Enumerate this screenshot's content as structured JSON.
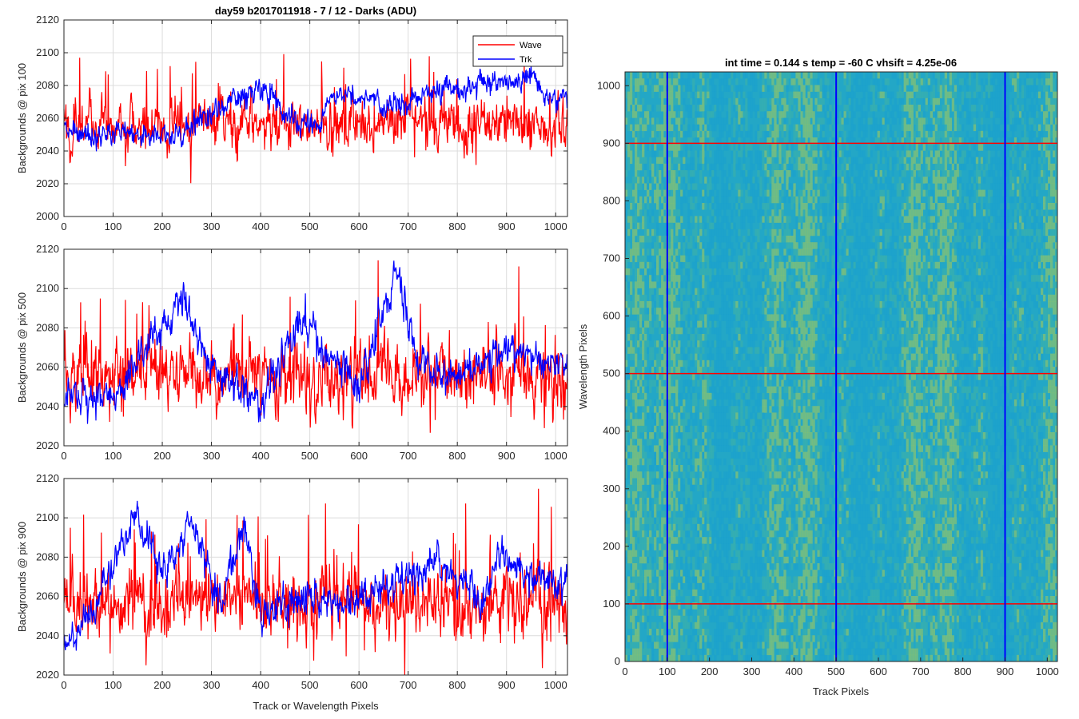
{
  "colors": {
    "wave": "#ff0000",
    "trk": "#0000ff",
    "axis": "#262626",
    "grid": "#dcdcdc"
  },
  "chart_data": [
    {
      "type": "line",
      "title": "day59 b2017011918 - 7 / 12 - Darks (ADU)",
      "xlabel": "",
      "ylabel": "Backgrounds @ pix 100",
      "xlim": [
        0,
        1024
      ],
      "ylim": [
        2000,
        2120
      ],
      "xticks": [
        "0",
        "100",
        "200",
        "300",
        "400",
        "500",
        "600",
        "700",
        "800",
        "900",
        "1000"
      ],
      "yticks": [
        "2000",
        "2020",
        "2040",
        "2060",
        "2080",
        "2100",
        "2120"
      ],
      "grid": true,
      "legend": "top-right",
      "series": [
        {
          "name": "Wave",
          "color": "#ff0000",
          "mean": 2055,
          "noise": 10,
          "spike_rate": 0.04,
          "spike_amp": 40,
          "features": []
        },
        {
          "name": "Trk",
          "color": "#0000ff",
          "mean": 2058,
          "noise": 5,
          "spike_rate": 0.0,
          "spike_amp": 0,
          "features": [
            [
              150,
              2050
            ],
            [
              250,
              2052
            ],
            [
              380,
              2078
            ],
            [
              420,
              2075
            ],
            [
              450,
              2062
            ],
            [
              520,
              2055
            ],
            [
              540,
              2075
            ],
            [
              680,
              2068
            ],
            [
              720,
              2075
            ],
            [
              950,
              2085
            ],
            [
              1000,
              2072
            ]
          ]
        }
      ]
    },
    {
      "type": "line",
      "title": "",
      "xlabel": "",
      "ylabel": "Backgrounds @ pix 500",
      "xlim": [
        0,
        1024
      ],
      "ylim": [
        2020,
        2120
      ],
      "xticks": [
        "0",
        "100",
        "200",
        "300",
        "400",
        "500",
        "600",
        "700",
        "800",
        "900",
        "1000"
      ],
      "yticks": [
        "2020",
        "2040",
        "2060",
        "2080",
        "2100",
        "2120"
      ],
      "grid": true,
      "series": [
        {
          "name": "Wave",
          "color": "#ff0000",
          "mean": 2055,
          "noise": 11,
          "spike_rate": 0.04,
          "spike_amp": 45,
          "features": []
        },
        {
          "name": "Trk",
          "color": "#0000ff",
          "mean": 2052,
          "noise": 6,
          "spike_rate": 0.0,
          "spike_amp": 0,
          "features": [
            [
              30,
              2045
            ],
            [
              100,
              2045
            ],
            [
              170,
              2070
            ],
            [
              245,
              2098
            ],
            [
              290,
              2060
            ],
            [
              350,
              2050
            ],
            [
              400,
              2040
            ],
            [
              480,
              2085
            ],
            [
              540,
              2065
            ],
            [
              600,
              2050
            ],
            [
              680,
              2110
            ],
            [
              720,
              2060
            ],
            [
              800,
              2055
            ],
            [
              900,
              2070
            ],
            [
              1024,
              2058
            ]
          ]
        }
      ]
    },
    {
      "type": "line",
      "title": "",
      "xlabel": "Track or Wavelength Pixels",
      "ylabel": "Backgrounds @ pix 900",
      "xlim": [
        0,
        1024
      ],
      "ylim": [
        2020,
        2120
      ],
      "xticks": [
        "0",
        "100",
        "200",
        "300",
        "400",
        "500",
        "600",
        "700",
        "800",
        "900",
        "1000"
      ],
      "yticks": [
        "2020",
        "2040",
        "2060",
        "2080",
        "2100",
        "2120"
      ],
      "grid": true,
      "series": [
        {
          "name": "Wave",
          "color": "#ff0000",
          "mean": 2057,
          "noise": 11,
          "spike_rate": 0.04,
          "spike_amp": 45,
          "features": []
        },
        {
          "name": "Trk",
          "color": "#0000ff",
          "mean": 2060,
          "noise": 6,
          "spike_rate": 0.0,
          "spike_amp": 0,
          "features": [
            [
              10,
              2035
            ],
            [
              60,
              2055
            ],
            [
              145,
              2100
            ],
            [
              200,
              2075
            ],
            [
              260,
              2095
            ],
            [
              320,
              2055
            ],
            [
              365,
              2100
            ],
            [
              400,
              2050
            ],
            [
              500,
              2060
            ],
            [
              560,
              2055
            ],
            [
              620,
              2060
            ],
            [
              760,
              2080
            ],
            [
              850,
              2055
            ],
            [
              880,
              2080
            ],
            [
              960,
              2070
            ],
            [
              1024,
              2065
            ]
          ]
        }
      ]
    },
    {
      "type": "heatmap",
      "title": "int time = 0.144 s   temp = -60 C   vhsift = 4.25e-06",
      "xlabel": "Track Pixels",
      "ylabel": "Wavelength Pixels",
      "xlim": [
        0,
        1024
      ],
      "ylim": [
        0,
        1024
      ],
      "xticks": [
        "0",
        "100",
        "200",
        "300",
        "400",
        "500",
        "600",
        "700",
        "800",
        "900",
        "1000"
      ],
      "yticks": [
        "0",
        "100",
        "200",
        "300",
        "400",
        "500",
        "600",
        "700",
        "800",
        "900",
        "1000"
      ],
      "colormap": [
        "#1aa0d0",
        "#23a7c6",
        "#3fb2a6",
        "#8cc36e"
      ],
      "vertical_markers": [
        100,
        500,
        900
      ],
      "horizontal_markers": [
        100,
        500,
        900
      ],
      "vertical_marker_color": "#0000ff",
      "horizontal_marker_color": "#ff0000"
    }
  ]
}
